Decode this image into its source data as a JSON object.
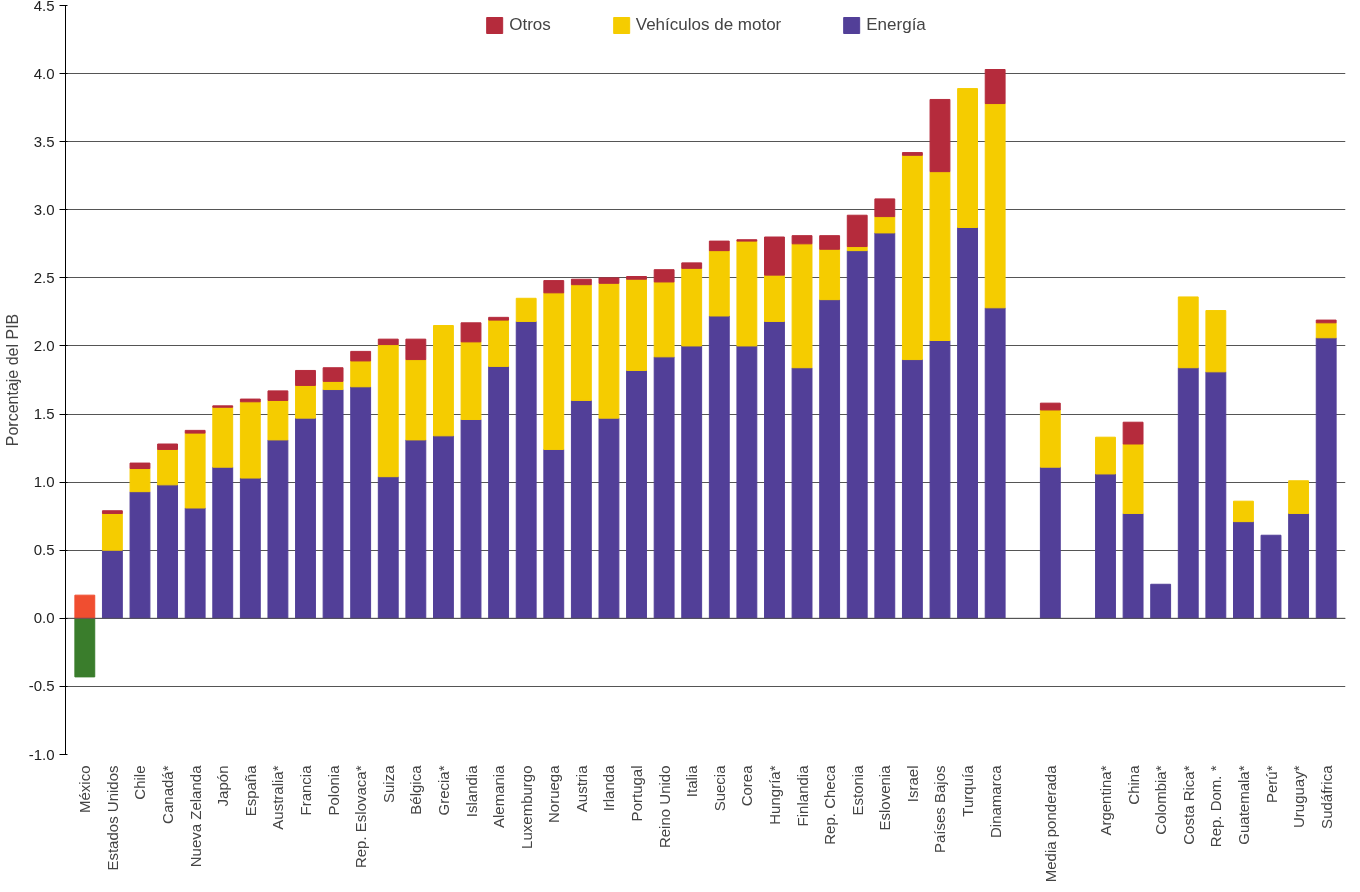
{
  "chart_data": {
    "type": "bar",
    "stacked": true,
    "ylabel": "Porcentaje del PIB",
    "categories": [
      "México",
      "Estados Unidos",
      "Chile",
      "Canadá*",
      "Nueva Zelanda",
      "Japón",
      "España",
      "Australia*",
      "Francia",
      "Polonia",
      "Rep. Eslovaca*",
      "Suiza",
      "Bélgica",
      "Grecia*",
      "Islandia",
      "Alemania",
      "Luxemburgo",
      "Noruega",
      "Austria",
      "Irlanda",
      "Portugal",
      "Reino Unido",
      "Italia",
      "Suecia",
      "Corea",
      "Hungría*",
      "Finlandia",
      "Rep. Checa",
      "Estonia",
      "Eslovenia",
      "Israel",
      "Países Bajos",
      "Turquía",
      "Dinamarca",
      null,
      "Media ponderada",
      null,
      "Argentina*",
      "China",
      "Colombia*",
      "Costa Rica*",
      "Rep. Dom. *",
      "Guatemala*",
      "Perú*",
      "Uruguay*",
      "Sudáfrica"
    ],
    "series": [
      {
        "name": "Energía",
        "color": "#523f98",
        "colors": [
          "#3a7d2c",
          "#523f98",
          "#523f98",
          "#523f98",
          "#523f98",
          "#523f98",
          "#523f98",
          "#523f98",
          "#523f98",
          "#523f98",
          "#523f98",
          "#523f98",
          "#523f98",
          "#523f98",
          "#523f98",
          "#523f98",
          "#523f98",
          "#523f98",
          "#523f98",
          "#523f98",
          "#523f98",
          "#523f98",
          "#523f98",
          "#523f98",
          "#523f98",
          "#523f98",
          "#523f98",
          "#523f98",
          "#523f98",
          "#523f98",
          "#523f98",
          "#523f98",
          "#523f98",
          "#523f98",
          "#523f98",
          "#523f98",
          "#523f98",
          "#523f98",
          "#523f98",
          "#523f98",
          "#523f98",
          "#523f98",
          "#523f98",
          "#523f98",
          "#523f98",
          "#523f98"
        ],
        "values": [
          -0.43,
          0.5,
          0.93,
          0.98,
          0.81,
          1.11,
          1.03,
          1.31,
          1.47,
          1.68,
          1.7,
          1.04,
          1.31,
          1.34,
          1.46,
          1.85,
          2.18,
          1.24,
          1.6,
          1.47,
          1.82,
          1.92,
          2.0,
          2.22,
          2.0,
          2.18,
          1.84,
          2.34,
          2.7,
          2.83,
          1.9,
          2.04,
          2.87,
          2.28,
          null,
          1.11,
          null,
          1.06,
          0.77,
          0.25,
          1.84,
          1.81,
          0.71,
          0.61,
          0.77,
          2.06
        ]
      },
      {
        "name": "Vehículos de motor",
        "color": "#f5cc00",
        "values": [
          null,
          0.27,
          0.17,
          0.26,
          0.55,
          0.44,
          0.56,
          0.29,
          0.24,
          0.06,
          0.19,
          0.97,
          0.59,
          0.81,
          0.57,
          0.34,
          0.17,
          1.15,
          0.85,
          0.99,
          0.67,
          0.55,
          0.57,
          0.48,
          0.77,
          0.34,
          0.91,
          0.37,
          0.03,
          0.12,
          1.5,
          1.24,
          1.02,
          1.5,
          null,
          0.42,
          null,
          0.27,
          0.51,
          null,
          0.52,
          0.45,
          0.15,
          null,
          0.24,
          0.11
        ]
      },
      {
        "name": "Otros",
        "color": "#b52b3c",
        "colors": [
          "#f04e30",
          "#b52b3c",
          "#b52b3c",
          "#b52b3c",
          "#b52b3c",
          "#b52b3c",
          "#b52b3c",
          "#b52b3c",
          "#b52b3c",
          "#b52b3c",
          "#b52b3c",
          "#b52b3c",
          "#b52b3c",
          "#b52b3c",
          "#b52b3c",
          "#b52b3c",
          "#b52b3c",
          "#b52b3c",
          "#b52b3c",
          "#b52b3c",
          "#b52b3c",
          "#b52b3c",
          "#b52b3c",
          "#b52b3c",
          "#b52b3c",
          "#b52b3c",
          "#b52b3c",
          "#b52b3c",
          "#b52b3c",
          "#b52b3c",
          "#b52b3c",
          "#b52b3c",
          "#b52b3c",
          "#b52b3c",
          "#b52b3c",
          "#b52b3c",
          "#b52b3c",
          "#b52b3c",
          "#b52b3c",
          "#b52b3c",
          "#b52b3c",
          "#b52b3c",
          "#b52b3c",
          "#b52b3c",
          "#b52b3c",
          "#b52b3c"
        ],
        "values": [
          0.17,
          0.02,
          0.04,
          0.04,
          0.02,
          0.01,
          0.02,
          0.07,
          0.11,
          0.1,
          0.07,
          0.04,
          0.15,
          null,
          0.14,
          0.02,
          null,
          0.09,
          0.04,
          0.04,
          0.02,
          0.09,
          0.04,
          0.07,
          0.01,
          0.28,
          0.06,
          0.1,
          0.23,
          0.13,
          0.02,
          0.53,
          null,
          0.25,
          null,
          0.05,
          null,
          null,
          0.16,
          null,
          null,
          null,
          null,
          null,
          null,
          0.02
        ]
      }
    ],
    "ylim": [
      -1.0,
      4.5
    ],
    "yticks": [
      {
        "value": -1.0,
        "label": "-1.0"
      },
      {
        "value": -0.5,
        "label": "-0.5"
      },
      {
        "value": 0,
        "label": "0.0"
      },
      {
        "value": 0.5,
        "label": "0.5"
      },
      {
        "value": 1,
        "label": "1.0"
      },
      {
        "value": 1.5,
        "label": "1.5"
      },
      {
        "value": 2,
        "label": "2.0"
      },
      {
        "value": 2.5,
        "label": "2.5"
      },
      {
        "value": 3,
        "label": "3.0"
      },
      {
        "value": 3.5,
        "label": "3.5"
      },
      {
        "value": 4,
        "label": "4.0"
      },
      {
        "value": 4.5,
        "label": "4.5"
      }
    ],
    "grid": "y",
    "legend": "top"
  }
}
